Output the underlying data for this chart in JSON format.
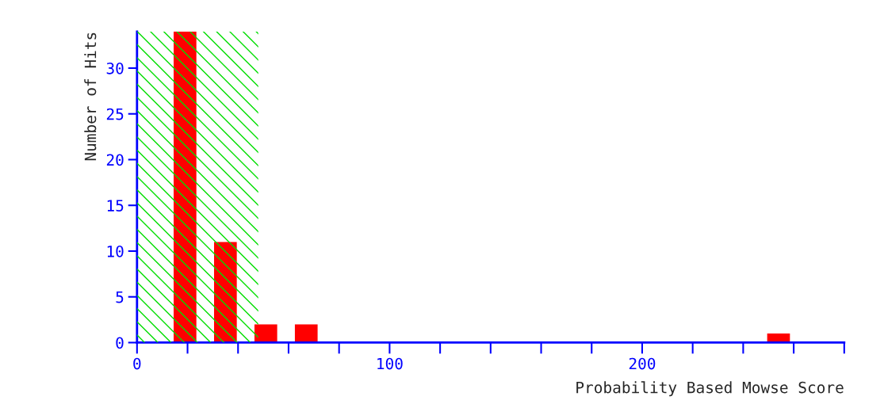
{
  "chart_data": {
    "type": "bar",
    "xlabel": "Probability Based Mowse Score",
    "ylabel": "Number of Hits",
    "x": [
      19,
      35,
      51,
      67,
      254
    ],
    "values": [
      34,
      11,
      2,
      2,
      1
    ],
    "color": "#ff0000",
    "xlim": [
      0,
      280
    ],
    "xticks": [
      0,
      {
        "value": 20,
        "label": null
      },
      {
        "value": 40,
        "label": null
      },
      {
        "value": 60,
        "label": null
      },
      {
        "value": 80,
        "label": null
      },
      100,
      {
        "value": 120,
        "label": null
      },
      {
        "value": 140,
        "label": null
      },
      {
        "value": 160,
        "label": null
      },
      {
        "value": 180,
        "label": null
      },
      200,
      {
        "value": 220,
        "label": null
      },
      {
        "value": 240,
        "label": null
      },
      {
        "value": 260,
        "label": null
      },
      {
        "value": 280,
        "label": null
      }
    ],
    "ylim": [
      0,
      34
    ],
    "yticks": [
      0,
      5,
      10,
      15,
      20,
      25,
      30
    ],
    "bands": [
      {
        "axis": "x",
        "from": 0,
        "to": 48,
        "color": "#00dd00"
      }
    ],
    "grid": false,
    "legend": false
  }
}
